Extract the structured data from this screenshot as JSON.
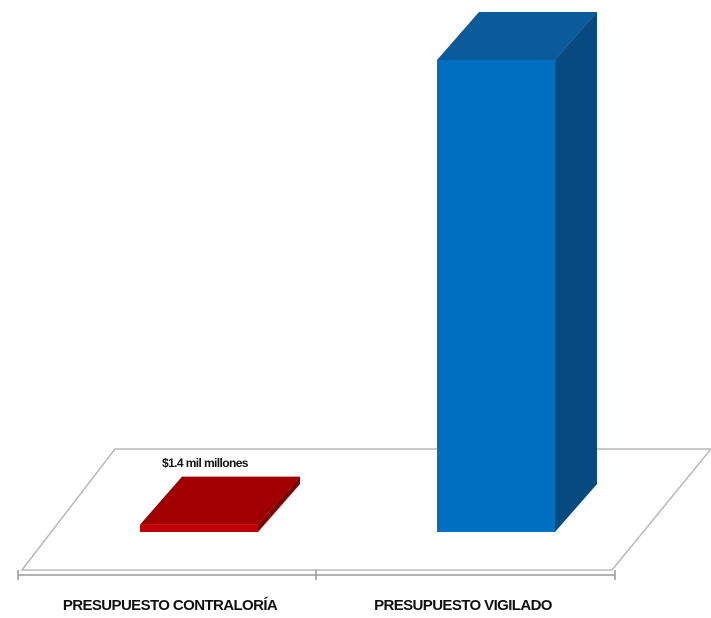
{
  "chart_data": {
    "type": "bar",
    "style": "3d-column",
    "categories": [
      "PRESUPUESTO CONTRALORÍA",
      "PRESUPUESTO VIGILADO"
    ],
    "values": [
      1.4,
      90
    ],
    "data_labels": [
      "$1.4 mil millones",
      ""
    ],
    "title": "",
    "xlabel": "",
    "ylabel": "",
    "ylim": [
      0,
      90
    ],
    "grid": false,
    "legend": "none",
    "colors": {
      "bar_front": [
        "#c00000",
        "#0070c0"
      ],
      "bar_top": [
        "#a00000",
        "#0b5a99"
      ],
      "bar_side": [
        "#7a0000",
        "#074a80"
      ],
      "floor_line": "#b8b8b8",
      "axis_line": "#999999"
    }
  }
}
